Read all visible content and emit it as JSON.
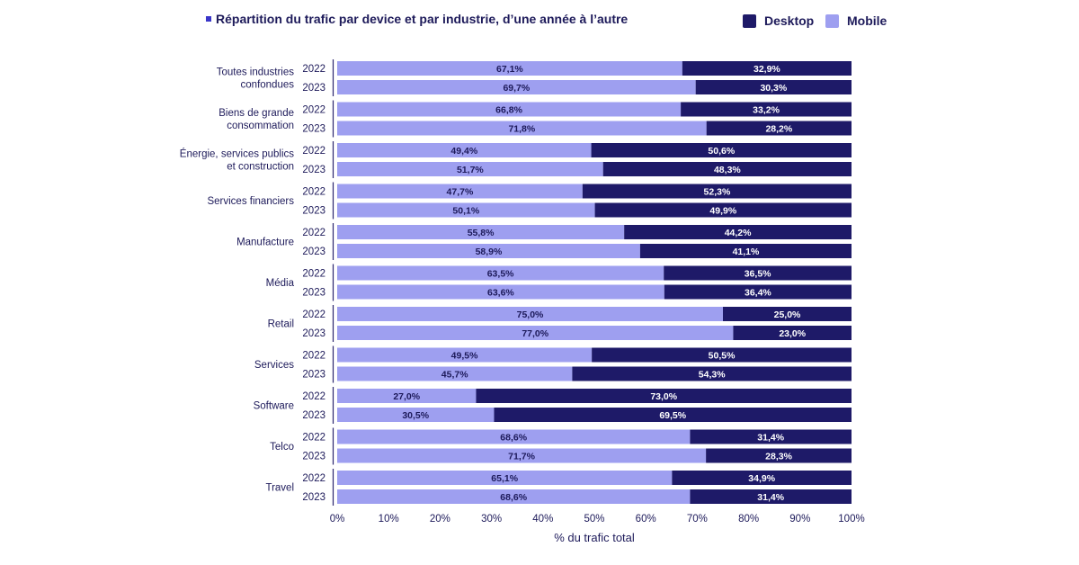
{
  "colors": {
    "mobile": "#9e9ff0",
    "desktop": "#1e1a68",
    "text": "#1d1a5a",
    "marker": "#3a36c9"
  },
  "chart_data": {
    "type": "bar",
    "orientation": "horizontal-stacked-100",
    "title": "Répartition du trafic par device et par industrie, d’une année à l’autre",
    "xlabel": "% du trafic total",
    "xlim": [
      0,
      100
    ],
    "x_ticks": [
      "0%",
      "10%",
      "20%",
      "30%",
      "40%",
      "50%",
      "60%",
      "70%",
      "80%",
      "90%",
      "100%"
    ],
    "legend": {
      "placement": "top-right",
      "entries": [
        "Desktop",
        "Mobile"
      ]
    },
    "series_names": {
      "mobile": "Mobile",
      "desktop": "Desktop"
    },
    "groups": [
      {
        "label": [
          "Toutes industries",
          "confondues"
        ],
        "rows": [
          {
            "year": "2022",
            "mobile": 67.1,
            "desktop": 32.9,
            "mobile_label": "67,1%",
            "desktop_label": "32,9%"
          },
          {
            "year": "2023",
            "mobile": 69.7,
            "desktop": 30.3,
            "mobile_label": "69,7%",
            "desktop_label": "30,3%"
          }
        ]
      },
      {
        "label": [
          "Biens de grande",
          "consommation"
        ],
        "rows": [
          {
            "year": "2022",
            "mobile": 66.8,
            "desktop": 33.2,
            "mobile_label": "66,8%",
            "desktop_label": "33,2%"
          },
          {
            "year": "2023",
            "mobile": 71.8,
            "desktop": 28.2,
            "mobile_label": "71,8%",
            "desktop_label": "28,2%"
          }
        ]
      },
      {
        "label": [
          "Énergie, services publics",
          "et construction"
        ],
        "rows": [
          {
            "year": "2022",
            "mobile": 49.4,
            "desktop": 50.6,
            "mobile_label": "49,4%",
            "desktop_label": "50,6%"
          },
          {
            "year": "2023",
            "mobile": 51.7,
            "desktop": 48.3,
            "mobile_label": "51,7%",
            "desktop_label": "48,3%"
          }
        ]
      },
      {
        "label": [
          "Services financiers"
        ],
        "rows": [
          {
            "year": "2022",
            "mobile": 47.7,
            "desktop": 52.3,
            "mobile_label": "47,7%",
            "desktop_label": "52,3%"
          },
          {
            "year": "2023",
            "mobile": 50.1,
            "desktop": 49.9,
            "mobile_label": "50,1%",
            "desktop_label": "49,9%"
          }
        ]
      },
      {
        "label": [
          "Manufacture"
        ],
        "rows": [
          {
            "year": "2022",
            "mobile": 55.8,
            "desktop": 44.2,
            "mobile_label": "55,8%",
            "desktop_label": "44,2%"
          },
          {
            "year": "2023",
            "mobile": 58.9,
            "desktop": 41.1,
            "mobile_label": "58,9%",
            "desktop_label": "41,1%"
          }
        ]
      },
      {
        "label": [
          "Média"
        ],
        "rows": [
          {
            "year": "2022",
            "mobile": 63.5,
            "desktop": 36.5,
            "mobile_label": "63,5%",
            "desktop_label": "36,5%"
          },
          {
            "year": "2023",
            "mobile": 63.6,
            "desktop": 36.4,
            "mobile_label": "63,6%",
            "desktop_label": "36,4%"
          }
        ]
      },
      {
        "label": [
          "Retail"
        ],
        "rows": [
          {
            "year": "2022",
            "mobile": 75.0,
            "desktop": 25.0,
            "mobile_label": "75,0%",
            "desktop_label": "25,0%"
          },
          {
            "year": "2023",
            "mobile": 77.0,
            "desktop": 23.0,
            "mobile_label": "77,0%",
            "desktop_label": "23,0%"
          }
        ]
      },
      {
        "label": [
          "Services"
        ],
        "rows": [
          {
            "year": "2022",
            "mobile": 49.5,
            "desktop": 50.5,
            "mobile_label": "49,5%",
            "desktop_label": "50,5%"
          },
          {
            "year": "2023",
            "mobile": 45.7,
            "desktop": 54.3,
            "mobile_label": "45,7%",
            "desktop_label": "54,3%"
          }
        ]
      },
      {
        "label": [
          "Software"
        ],
        "rows": [
          {
            "year": "2022",
            "mobile": 27.0,
            "desktop": 73.0,
            "mobile_label": "27,0%",
            "desktop_label": "73,0%"
          },
          {
            "year": "2023",
            "mobile": 30.5,
            "desktop": 69.5,
            "mobile_label": "30,5%",
            "desktop_label": "69,5%"
          }
        ]
      },
      {
        "label": [
          "Telco"
        ],
        "rows": [
          {
            "year": "2022",
            "mobile": 68.6,
            "desktop": 31.4,
            "mobile_label": "68,6%",
            "desktop_label": "31,4%"
          },
          {
            "year": "2023",
            "mobile": 71.7,
            "desktop": 28.3,
            "mobile_label": "71,7%",
            "desktop_label": "28,3%"
          }
        ]
      },
      {
        "label": [
          "Travel"
        ],
        "rows": [
          {
            "year": "2022",
            "mobile": 65.1,
            "desktop": 34.9,
            "mobile_label": "65,1%",
            "desktop_label": "34,9%"
          },
          {
            "year": "2023",
            "mobile": 68.6,
            "desktop": 31.4,
            "mobile_label": "68,6%",
            "desktop_label": "31,4%"
          }
        ]
      }
    ]
  }
}
